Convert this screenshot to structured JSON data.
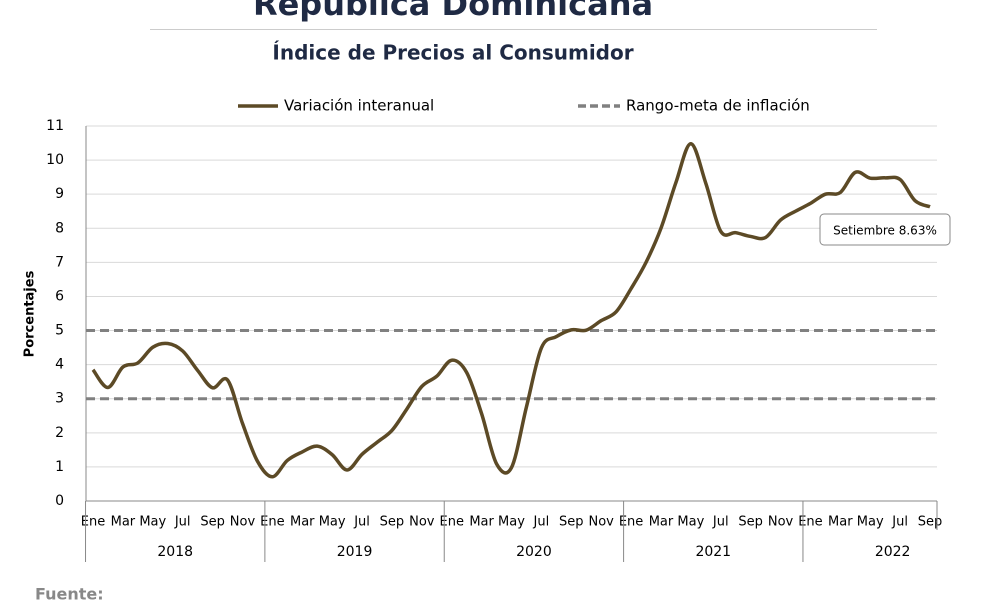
{
  "chart_data": {
    "type": "line",
    "title": "República Dominicana",
    "subtitle": "Índice de Precios al Consumidor",
    "y_label": "Porcentajes",
    "categories": [
      "Ene",
      null,
      "Mar",
      null,
      "May",
      null,
      "Jul",
      null,
      "Sep",
      null,
      "Nov",
      null,
      "Ene",
      null,
      "Mar",
      null,
      "May",
      null,
      "Jul",
      null,
      "Sep",
      null,
      "Nov",
      null,
      "Ene",
      null,
      "Mar",
      null,
      "May",
      null,
      "Jul",
      null,
      "Sep",
      null,
      "Nov",
      null,
      "Ene",
      null,
      "Mar",
      null,
      "May",
      null,
      "Jul",
      null,
      "Sep",
      null,
      "Nov",
      null,
      "Ene",
      null,
      "Mar",
      null,
      "May",
      null,
      "Jul",
      null,
      "Sep"
    ],
    "years": [
      "2018",
      "2019",
      "2020",
      "2021",
      "2022"
    ],
    "series": [
      {
        "name": "Variación interanual",
        "color": "#5c4a26",
        "values": [
          3.85,
          3.33,
          3.93,
          4.05,
          4.51,
          4.62,
          4.4,
          3.83,
          3.32,
          3.55,
          2.28,
          1.17,
          0.71,
          1.19,
          1.44,
          1.61,
          1.36,
          0.91,
          1.37,
          1.72,
          2.07,
          2.7,
          3.36,
          3.66,
          4.13,
          3.77,
          2.56,
          1.09,
          0.98,
          2.76,
          4.49,
          4.82,
          5.02,
          5.01,
          5.29,
          5.55,
          6.23,
          7.0,
          8.0,
          9.34,
          10.48,
          9.32,
          7.91,
          7.87,
          7.76,
          7.73,
          8.24,
          8.5,
          8.73,
          9.0,
          9.05,
          9.64,
          9.47,
          9.48,
          9.43,
          8.81,
          8.63
        ]
      }
    ],
    "reference_lines": {
      "name": "Rango-meta de inflación",
      "color": "#808080",
      "values": [
        3,
        5
      ]
    },
    "annotation": "Setiembre 8.63%",
    "ylim": [
      0,
      11
    ],
    "yticks": [
      0,
      1,
      2,
      3,
      4,
      5,
      6,
      7,
      8,
      9,
      10,
      11
    ],
    "grid": true
  },
  "footer": "Fuente:"
}
